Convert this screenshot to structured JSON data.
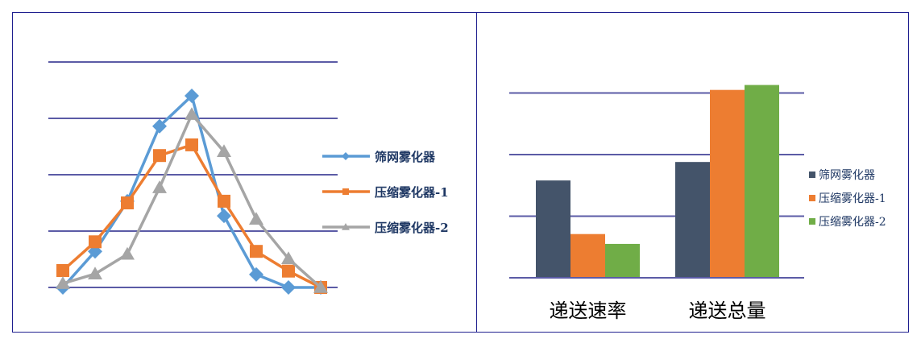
{
  "colors": {
    "grid": "#5b5ba6",
    "border": "#1f1f8f",
    "legend_text": "#1f3864",
    "axis_text": "#000000"
  },
  "chart_data": [
    {
      "type": "line",
      "grid": true,
      "ylim": [
        0,
        4
      ],
      "legend_placement": "right",
      "series": [
        {
          "name": "筛网雾化器",
          "marker": "diamond",
          "color": "#5b9bd5",
          "values": [
            0,
            0.64,
            1.53,
            2.86,
            3.4,
            1.27,
            0.23,
            0,
            0
          ]
        },
        {
          "name": "压缩雾化器-1",
          "marker": "square",
          "color": "#ed7d31",
          "values": [
            0.3,
            0.81,
            1.5,
            2.34,
            2.53,
            1.53,
            0.64,
            0.29,
            0
          ]
        },
        {
          "name": "压缩雾化器-2",
          "marker": "triangle",
          "color": "#a5a5a5",
          "values": [
            0.07,
            0.24,
            0.59,
            1.77,
            3.07,
            2.41,
            1.21,
            0.51,
            0
          ]
        }
      ]
    },
    {
      "type": "bar",
      "grid": true,
      "ylim": [
        0,
        3
      ],
      "legend_placement": "right",
      "categories": [
        "递送速率",
        "递送总量"
      ],
      "series": [
        {
          "name": "筛网雾化器",
          "color": "#44546a",
          "values": [
            1.58,
            1.88
          ]
        },
        {
          "name": "压缩雾化器-1",
          "color": "#ed7d31",
          "values": [
            0.71,
            3.05
          ]
        },
        {
          "name": "压缩雾化器-2",
          "color": "#70ad47",
          "values": [
            0.55,
            3.13
          ]
        }
      ]
    }
  ]
}
